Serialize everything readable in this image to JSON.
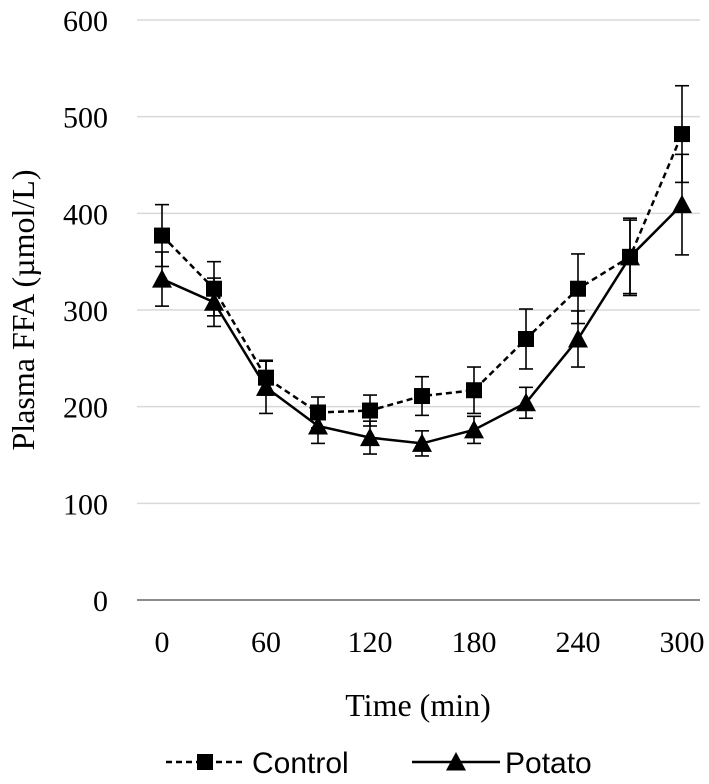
{
  "chart_data": {
    "type": "line",
    "title": "",
    "xlabel": "Time (min)",
    "ylabel": "Plasma FFA (µmol/L)",
    "ylim": [
      0,
      600
    ],
    "yticks": [
      0,
      100,
      200,
      300,
      400,
      500,
      600
    ],
    "xticks": [
      0,
      60,
      120,
      180,
      240,
      300
    ],
    "xlim": [
      0,
      300
    ],
    "grid": true,
    "legend": "bottom",
    "x": [
      0,
      30,
      60,
      90,
      120,
      150,
      180,
      210,
      240,
      270,
      300
    ],
    "series": [
      {
        "name": "Control",
        "marker": "square",
        "line_style": "dashed",
        "color": "#000000",
        "values": [
          377,
          322,
          230,
          194,
          196,
          211,
          217,
          270,
          322,
          355,
          482
        ],
        "errors": [
          32,
          28,
          18,
          16,
          16,
          20,
          24,
          31,
          36,
          40,
          50
        ]
      },
      {
        "name": "Potato",
        "marker": "triangle",
        "line_style": "solid",
        "color": "#000000",
        "values": [
          332,
          308,
          220,
          180,
          168,
          162,
          176,
          204,
          270,
          355,
          409
        ],
        "errors": [
          28,
          25,
          27,
          18,
          17,
          13,
          14,
          16,
          29,
          38,
          52
        ]
      }
    ]
  }
}
